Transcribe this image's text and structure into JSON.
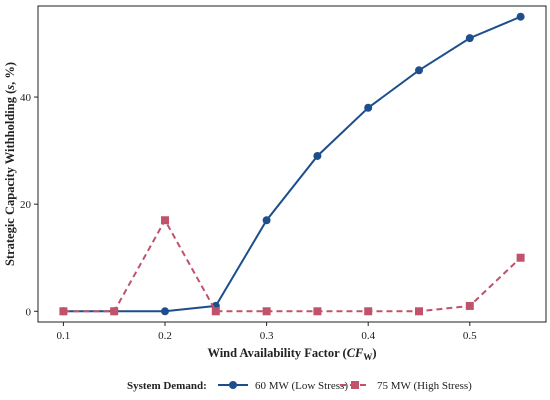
{
  "chart_data": {
    "type": "line",
    "title": "",
    "xlabel_prefix": "Wind Availability Factor (",
    "xlabel_symbol": "CF",
    "xlabel_subscript": "W",
    "xlabel_suffix": ")",
    "ylabel_prefix": "Strategic Capacity Withholding (",
    "ylabel_symbol": "s",
    "ylabel_suffix": ", %)",
    "x": [
      0.1,
      0.15,
      0.2,
      0.25,
      0.3,
      0.35,
      0.4,
      0.45,
      0.5,
      0.55
    ],
    "xticks": [
      "0.1",
      "0.2",
      "0.3",
      "0.4",
      "0.5"
    ],
    "xtick_values": [
      0.1,
      0.2,
      0.3,
      0.4,
      0.5
    ],
    "yticks": [
      "0",
      "20",
      "40"
    ],
    "ytick_values": [
      0,
      20,
      40
    ],
    "xlim": [
      0.075,
      0.575
    ],
    "ylim": [
      -2,
      57
    ],
    "grid": false,
    "legend_position": "bottom",
    "legend_title": "System Demand:",
    "series": [
      {
        "name": "60 MW (Low Stress)",
        "values": [
          0,
          0,
          0,
          1,
          17,
          29,
          38,
          45,
          51,
          55
        ],
        "color": "#1f4e8c",
        "marker": "circle",
        "line": "solid"
      },
      {
        "name": "75 MW (High Stress)",
        "values": [
          0,
          0,
          17,
          0,
          0,
          0,
          0,
          0,
          1,
          10
        ],
        "color": "#c0536b",
        "marker": "square",
        "line": "dashed"
      }
    ]
  }
}
